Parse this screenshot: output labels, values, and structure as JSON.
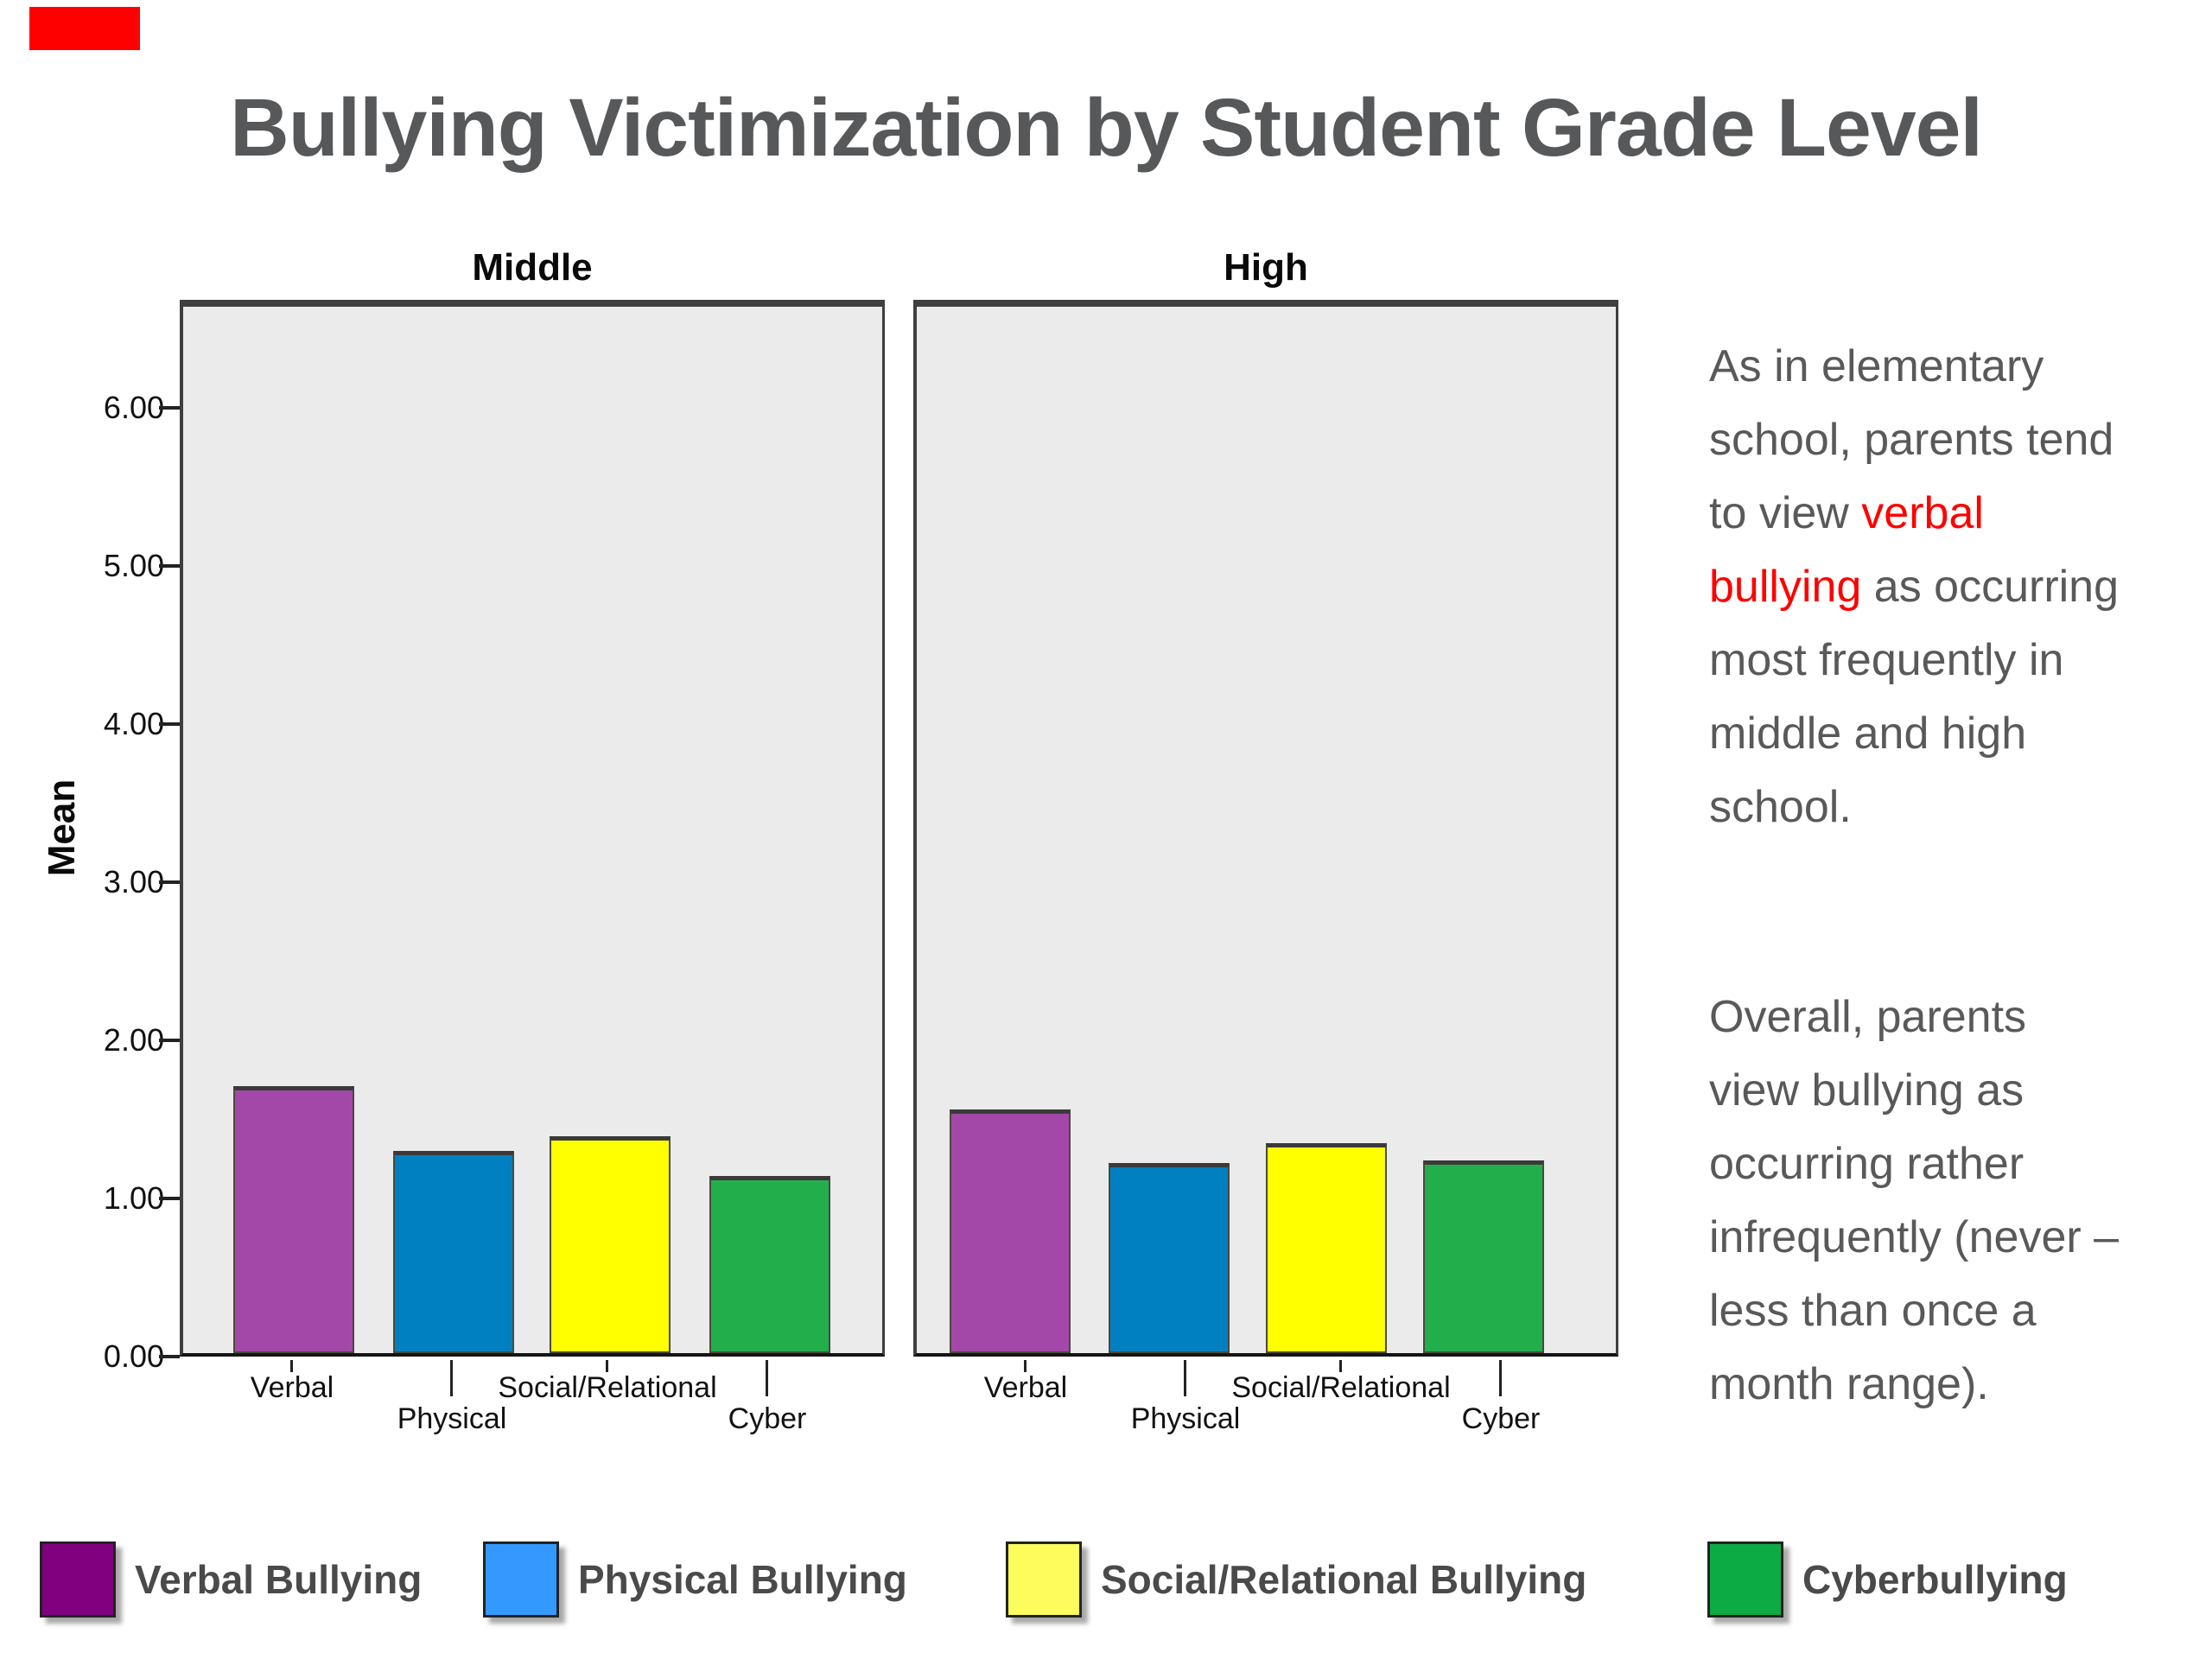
{
  "page": {
    "title": "Bullying Victimization by Student Grade Level",
    "corner_marker_color": "#ff0000"
  },
  "chart_data": {
    "type": "bar",
    "panels": [
      {
        "label": "Middle",
        "categories": [
          "Verbal",
          "Physical",
          "Social/Relational",
          "Cyber"
        ],
        "values": [
          1.69,
          1.28,
          1.37,
          1.12
        ]
      },
      {
        "label": "High",
        "categories": [
          "Verbal",
          "Physical",
          "Social/Relational",
          "Cyber"
        ],
        "values": [
          1.54,
          1.2,
          1.33,
          1.22
        ]
      }
    ],
    "ylabel": "Mean",
    "xlabel": "",
    "yticks": [
      "6.00",
      "5.00",
      "4.00",
      "3.00",
      "2.00",
      "1.00",
      "0.00"
    ],
    "ytick_values": [
      6,
      5,
      4,
      3,
      2,
      1,
      0
    ],
    "ylim": [
      0,
      6.68
    ],
    "grid": false,
    "legend_position": "bottom",
    "panel_background": "#ebebeb",
    "series_colors": {
      "Verbal": "#a348a8",
      "Physical": "#0080c0",
      "Social/Relational": "#ffff00",
      "Cyber": "#22af4b"
    }
  },
  "annotations": {
    "highlight_color": "#ff0000",
    "para1": {
      "l1": "As in elementary",
      "l2": "school, parents tend",
      "l3a": "to view ",
      "l3b": "verbal",
      "l4a": "bullying",
      "l4b": " as occurring",
      "l5": "most frequently in",
      "l6": "middle and high",
      "l7": "school."
    },
    "para2": {
      "l1": "Overall, parents",
      "l2": "view bullying as",
      "l3": "occurring rather",
      "l4": "infrequently (never –",
      "l5": "less than once a",
      "l6": "month range)."
    }
  },
  "legend": {
    "items": [
      {
        "label": "Verbal Bullying",
        "color": "#800080"
      },
      {
        "label": "Physical Bullying",
        "color": "#3399ff"
      },
      {
        "label": "Social/Relational Bullying",
        "color": "#fcfc5c"
      },
      {
        "label": "Cyberbullying",
        "color": "#0dab44"
      }
    ]
  }
}
